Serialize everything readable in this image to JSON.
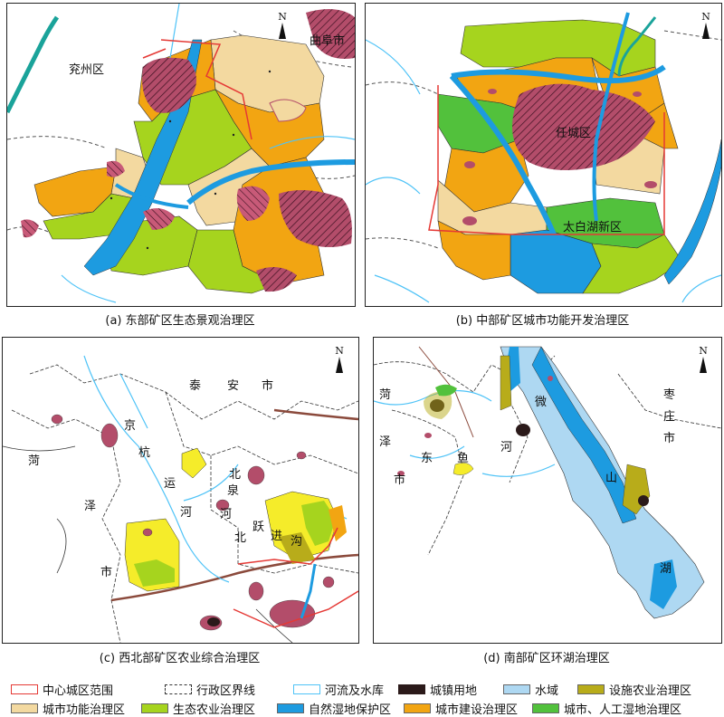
{
  "panels": [
    {
      "caption": "(a)  东部矿区生态景观治理区",
      "north": "N",
      "labels": [
        "兖州区",
        "曲阜市"
      ]
    },
    {
      "caption": "(b)  中部矿区城市功能开发治理区",
      "north": "N",
      "labels": [
        "任城区",
        "太白湖新区"
      ]
    },
    {
      "caption": "(c)  西北部矿区农业综合治理区",
      "north": "N",
      "labels": [
        "泰",
        "安",
        "市",
        "菏",
        "泽",
        "市",
        "京",
        "杭",
        "运",
        "河",
        "北",
        "泉",
        "河",
        "北",
        "跃",
        "进",
        "沟"
      ]
    },
    {
      "caption": "(d)  南部矿区环湖治理区",
      "north": "N",
      "labels": [
        "菏",
        "泽",
        "市",
        "东",
        "鱼",
        "河",
        "微",
        "山",
        "湖",
        "枣",
        "庄",
        "市"
      ]
    }
  ],
  "legend": [
    {
      "label": "中心城区范围",
      "icon": "red-outline",
      "color": "#e53935"
    },
    {
      "label": "行政区界线",
      "icon": "dashed-outline",
      "color": "#333333"
    },
    {
      "label": "河流及水库",
      "icon": "cyan-outline",
      "color": "#4fc3f7"
    },
    {
      "label": "城镇用地",
      "icon": "solid-fill",
      "color": "#2b1a1a"
    },
    {
      "label": "水域",
      "icon": "solid-fill",
      "color": "#aed8f2"
    },
    {
      "label": "设施农业治理区",
      "icon": "solid-fill",
      "color": "#b8ac1a"
    },
    {
      "label": "城市功能治理区",
      "icon": "solid-fill",
      "color": "#f3d9a0"
    },
    {
      "label": "生态农业治理区",
      "icon": "solid-fill",
      "color": "#a6d41e"
    },
    {
      "label": "自然湿地保护区",
      "icon": "solid-fill",
      "color": "#1d9be0"
    },
    {
      "label": "城市建设治理区",
      "icon": "solid-fill",
      "color": "#f2a512"
    },
    {
      "label": "城市、人工湿地治理区",
      "icon": "solid-fill",
      "color": "#52c13c"
    }
  ],
  "colors": {
    "urban": "#b34d6a",
    "river": "#4fc3f7",
    "boundary": "#e53935",
    "admin": "#555555",
    "water": "#aed8f2",
    "facility": "#b8ac1a",
    "function": "#f3d9a0",
    "eco": "#a6d41e",
    "wetland": "#1d9be0",
    "construction": "#f2a512",
    "artificial": "#52c13c",
    "yellow": "#f5ec2a"
  }
}
